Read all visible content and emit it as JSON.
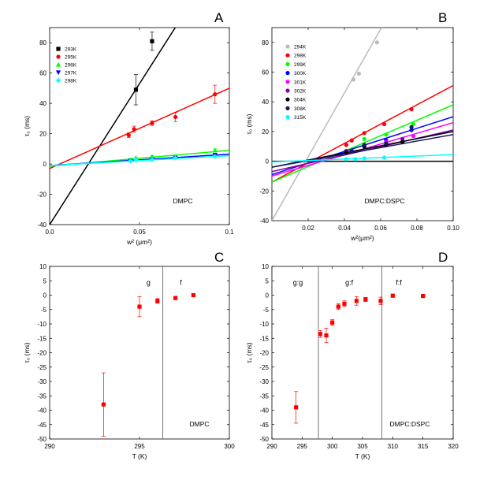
{
  "chart_data": [
    {
      "panel": "A",
      "type": "scatter",
      "xlabel": "w² (μm²)",
      "ylabel": "τ₀ (ms)",
      "xlim": [
        0,
        0.1
      ],
      "ylim": [
        -40,
        90
      ],
      "xticks": [
        "0.0",
        "0.05",
        "0.1"
      ],
      "yticks": [
        -40,
        -20,
        0,
        20,
        40,
        60,
        80
      ],
      "annotation": "DMPC",
      "legend_position": "top-left",
      "series": [
        {
          "name": "293K",
          "color": "#000000",
          "marker": "square",
          "x": [
            0.048,
            0.057
          ],
          "y": [
            49,
            81
          ],
          "yerr": [
            10,
            6
          ],
          "fit": [
            -40,
            1860
          ]
        },
        {
          "name": "295K",
          "color": "#ff0000",
          "marker": "circle",
          "x": [
            0.044,
            0.047,
            0.057,
            0.07,
            0.092
          ],
          "y": [
            19,
            23,
            27,
            31,
            46
          ],
          "yerr": [
            1.5,
            2,
            1.5,
            3,
            6
          ],
          "fit": [
            -3,
            530
          ]
        },
        {
          "name": "296K",
          "color": "#00ff00",
          "marker": "triangle-up",
          "x": [
            0.045,
            0.048,
            0.057,
            0.07,
            0.092
          ],
          "y": [
            3,
            4,
            5,
            5,
            9
          ],
          "yerr": [
            0.5,
            0.5,
            0.5,
            0.5,
            1
          ],
          "fit": [
            -1.5,
            105
          ]
        },
        {
          "name": "297K",
          "color": "#0000ff",
          "marker": "triangle-down",
          "x": [
            0.045,
            0.057,
            0.07,
            0.092
          ],
          "y": [
            2,
            3,
            4,
            6
          ],
          "yerr": [
            0.5,
            0.5,
            0.5,
            0.8
          ],
          "fit": [
            -1,
            75
          ]
        },
        {
          "name": "298K",
          "color": "#00ffff",
          "marker": "diamond",
          "x": [
            0.045,
            0.048,
            0.057,
            0.07,
            0.092
          ],
          "y": [
            2,
            3,
            3,
            4,
            5
          ],
          "yerr": [
            0.4,
            0.4,
            0.4,
            0.4,
            0.6
          ],
          "fit": [
            -1,
            65
          ]
        }
      ]
    },
    {
      "panel": "B",
      "type": "scatter",
      "xlabel": "w²(μm²)",
      "ylabel": "τ₀ (ms)",
      "xlim": [
        0.0,
        0.1
      ],
      "ylim": [
        -40,
        90
      ],
      "xticks": [
        "0.02",
        "0.04",
        "0.06",
        "0.08",
        "0.10"
      ],
      "yticks": [
        -40,
        -20,
        0,
        20,
        40,
        60,
        80
      ],
      "annotation": "DMPC:DSPC",
      "legend_position": "top-left",
      "series": [
        {
          "name": "294K",
          "color": "#bbbbbb",
          "marker": "circle",
          "x": [
            0.045,
            0.048,
            0.058
          ],
          "y": [
            55,
            59,
            80
          ],
          "fit": [
            -40,
            2150
          ]
        },
        {
          "name": "298K",
          "color": "#ff0000",
          "marker": "circle",
          "x": [
            0.041,
            0.044,
            0.051,
            0.062,
            0.077
          ],
          "y": [
            11,
            14,
            19,
            25,
            35
          ],
          "fit": [
            -14,
            650
          ]
        },
        {
          "name": "299K",
          "color": "#00ff00",
          "marker": "circle",
          "x": [
            0.051,
            0.063,
            0.078
          ],
          "y": [
            15,
            18,
            25
          ],
          "fit": [
            -14,
            520
          ]
        },
        {
          "name": "300K",
          "color": "#0000ff",
          "marker": "circle",
          "x": [
            0.051,
            0.063,
            0.077
          ],
          "y": [
            11,
            14,
            21
          ],
          "fit": [
            -9,
            390
          ]
        },
        {
          "name": "301K",
          "color": "#ff00ff",
          "marker": "circle",
          "x": [
            0.051,
            0.063,
            0.078
          ],
          "y": [
            10,
            13,
            17
          ],
          "fit": [
            -10,
            360
          ]
        },
        {
          "name": "302K",
          "color": "#8800aa",
          "marker": "circle",
          "x": [
            0.041,
            0.051,
            0.063,
            0.072
          ],
          "y": [
            7,
            10,
            12,
            15
          ],
          "fit": [
            -7,
            280
          ]
        },
        {
          "name": "304K",
          "color": "#000000",
          "marker": "circle",
          "x": [
            0.041,
            0.051,
            0.063,
            0.072
          ],
          "y": [
            6,
            10,
            11,
            13
          ],
          "fit": [
            -4,
            240
          ]
        },
        {
          "name": "308K",
          "color": "#1a1a66",
          "marker": "circle",
          "x": [
            0.044,
            0.051,
            0.063,
            0.077
          ],
          "y": [
            7,
            11,
            12,
            23
          ],
          "fit": [
            -4,
            220
          ]
        },
        {
          "name": "315K",
          "color": "#00ffff",
          "marker": "circle",
          "x": [
            0.041,
            0.046,
            0.051,
            0.062
          ],
          "y": [
            1.5,
            1.5,
            2,
            2.5
          ],
          "fit": [
            -0.5,
            50
          ]
        }
      ],
      "zero_line": true
    },
    {
      "panel": "C",
      "type": "scatter",
      "xlabel": "T (K)",
      "ylabel": "τ₀ (ms)",
      "xlim": [
        290,
        300
      ],
      "ylim": [
        -50,
        10
      ],
      "xticks": [
        290,
        295,
        300
      ],
      "yticks": [
        -50,
        -45,
        -40,
        -35,
        -30,
        -25,
        -20,
        -15,
        -10,
        -5,
        0,
        5,
        10
      ],
      "annotation": "DMPC",
      "phase_lines": [
        296.3
      ],
      "phase_labels": [
        "g",
        "f"
      ],
      "series": [
        {
          "name": "",
          "color": "#ff0000",
          "marker": "square",
          "x": [
            293,
            295,
            296,
            297,
            298
          ],
          "y": [
            -38,
            -4,
            -2,
            -1,
            0
          ],
          "yerr": [
            11,
            3.5,
            0.8,
            0.5,
            0.4
          ]
        }
      ]
    },
    {
      "panel": "D",
      "type": "scatter",
      "xlabel": "T (K)",
      "ylabel": "τ₀ (ms)",
      "xlim": [
        290,
        320
      ],
      "ylim": [
        -50,
        10
      ],
      "xticks": [
        290,
        295,
        300,
        305,
        310,
        315,
        320
      ],
      "yticks": [
        -50,
        -45,
        -40,
        -35,
        -30,
        -25,
        -20,
        -15,
        -10,
        -5,
        0,
        5,
        10
      ],
      "annotation": "DMPC:DSPC",
      "phase_lines": [
        297.7,
        308.2
      ],
      "phase_labels": [
        "g:g",
        "g:f",
        "f:f"
      ],
      "series": [
        {
          "name": "",
          "color": "#ff0000",
          "marker": "square",
          "x": [
            294,
            298,
            299,
            300,
            301,
            302,
            304,
            305.5,
            308,
            310,
            315
          ],
          "y": [
            -39,
            -13.5,
            -14,
            -9.5,
            -4,
            -3,
            -2,
            -1.5,
            -2,
            -0.2,
            -0.3
          ],
          "yerr": [
            5.5,
            1.2,
            2.5,
            1,
            1,
            1,
            1.5,
            0.7,
            1.3,
            0.5,
            0.5
          ]
        }
      ]
    }
  ]
}
